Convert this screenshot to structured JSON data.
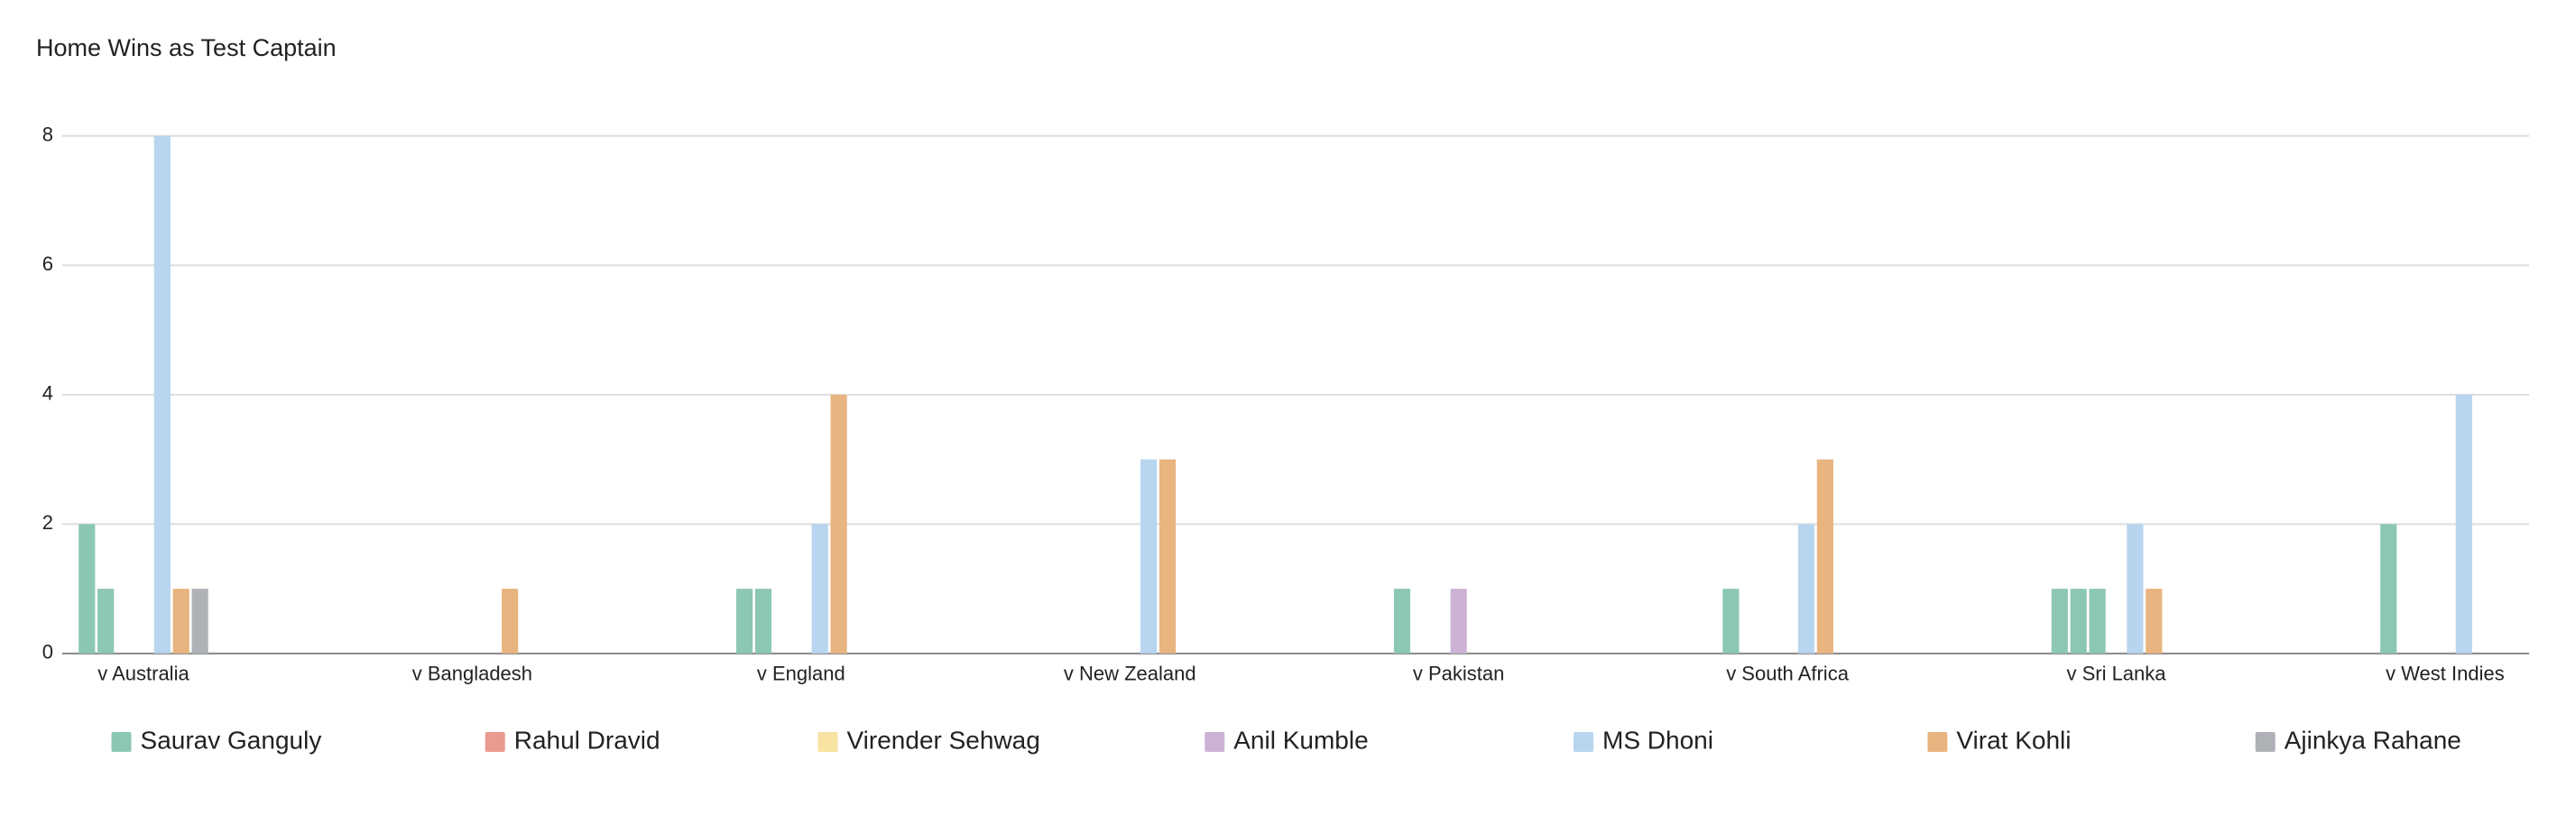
{
  "chart_data": {
    "type": "bar",
    "title": "Home Wins as Test Captain",
    "categories": [
      "v Australia",
      "v Bangladesh",
      "v England",
      "v New Zealand",
      "v Pakistan",
      "v South Africa",
      "v Sri Lanka",
      "v West Indies"
    ],
    "series": [
      {
        "name": "Saurav Ganguly",
        "color": "#8cc7b5",
        "values": [
          2,
          0,
          1,
          0,
          1,
          1,
          1,
          2
        ]
      },
      {
        "name": "Rahul Dravid",
        "color": "#ea9a8e",
        "bar_color": "#8cc7b5",
        "values": [
          1,
          0,
          1,
          0,
          0,
          0,
          1,
          0
        ]
      },
      {
        "name": "Virender Sehwag",
        "color": "#f8e3a3",
        "bar_color": "#8cc7b5",
        "values": [
          0,
          0,
          0,
          0,
          0,
          0,
          1,
          0
        ]
      },
      {
        "name": "Anil Kumble",
        "color": "#ccb3d6",
        "values": [
          0,
          0,
          0,
          0,
          1,
          0,
          0,
          0
        ]
      },
      {
        "name": "MS Dhoni",
        "color": "#b7d5ee",
        "values": [
          8,
          0,
          2,
          3,
          0,
          2,
          2,
          4
        ]
      },
      {
        "name": "Virat Kohli",
        "color": "#e8b47f",
        "values": [
          1,
          1,
          4,
          3,
          0,
          3,
          1,
          0
        ]
      },
      {
        "name": "Ajinkya Rahane",
        "color": "#aeb2b6",
        "values": [
          1,
          0,
          0,
          0,
          0,
          0,
          0,
          0
        ]
      }
    ],
    "ylim": [
      0,
      8
    ],
    "yticks": [
      0,
      2,
      4,
      6,
      8
    ],
    "grid": true,
    "legend": "bottom"
  }
}
